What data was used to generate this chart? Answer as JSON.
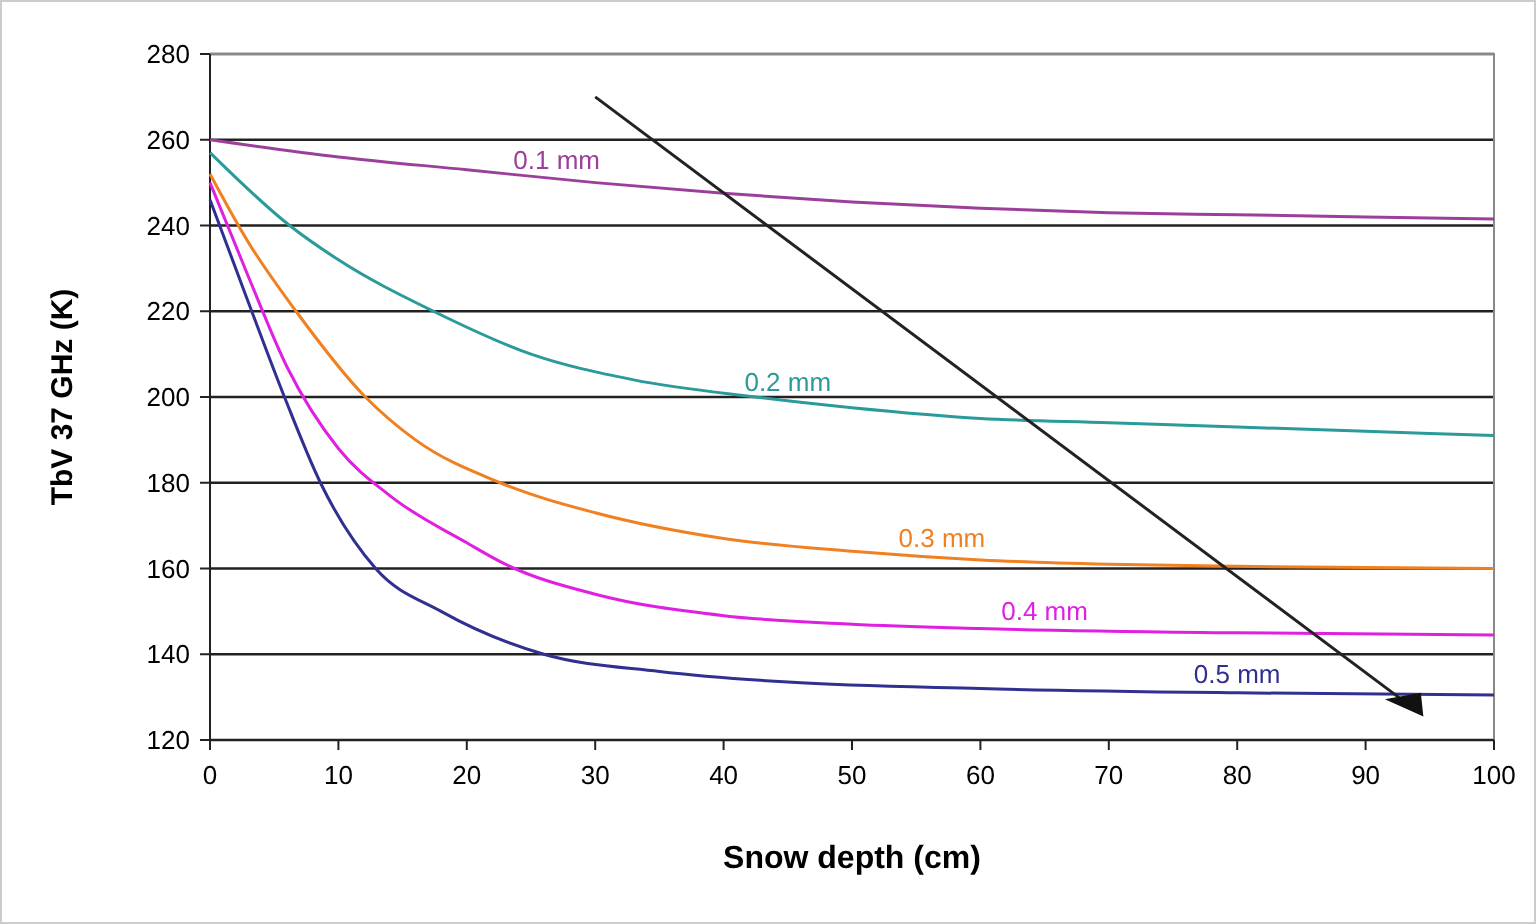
{
  "chart_data": {
    "type": "line",
    "xlabel": "Snow depth (cm)",
    "ylabel": "TbV 37 GHz (K)",
    "xlim": [
      0,
      100
    ],
    "xticks": [
      0,
      10,
      20,
      30,
      40,
      50,
      60,
      70,
      80,
      90,
      100
    ],
    "ylim": [
      120,
      280
    ],
    "yticks": [
      120,
      140,
      160,
      180,
      200,
      220,
      240,
      260,
      280
    ],
    "grid": "y",
    "marker": "none",
    "line_style": "solid",
    "series": [
      {
        "name": "0.1 mm",
        "color": "#9b3f9b",
        "x": [
          0,
          10,
          20,
          30,
          40,
          50,
          60,
          70,
          80,
          90,
          100
        ],
        "values": [
          260,
          256,
          253,
          250,
          247.5,
          245.5,
          244,
          243,
          242.5,
          242,
          241.5
        ]
      },
      {
        "name": "0.2 mm",
        "color": "#2a9a9a",
        "x": [
          0,
          6.2,
          10,
          17.4,
          25,
          33,
          42.5,
          50,
          60,
          70,
          80,
          90,
          100
        ],
        "values": [
          257,
          240,
          232,
          220,
          210,
          204,
          200,
          197.5,
          195,
          194,
          193,
          192,
          191
        ]
      },
      {
        "name": "0.3 mm",
        "color": "#f08020",
        "x": [
          0,
          3,
          6.7,
          12.1,
          16,
          22.6,
          30,
          40,
          50,
          60,
          70,
          80,
          100
        ],
        "values": [
          252,
          236,
          220,
          200,
          190,
          180,
          173,
          167,
          164,
          162,
          161,
          160.5,
          160
        ]
      },
      {
        "name": "0.4 mm",
        "color": "#e020e0",
        "x": [
          0,
          3,
          6,
          10,
          14,
          20,
          23,
          30,
          40,
          50,
          60,
          80,
          100
        ],
        "values": [
          250,
          228,
          207,
          188,
          177,
          166,
          161,
          154,
          149,
          147,
          146,
          145,
          144.5
        ]
      },
      {
        "name": "0.5 mm",
        "color": "#303090",
        "x": [
          0,
          3,
          5.8,
          8.6,
          12.9,
          18,
          26,
          35,
          45,
          60,
          80,
          100
        ],
        "values": [
          246,
          222,
          200,
          180,
          160,
          150,
          140,
          136,
          133.5,
          132,
          131,
          130.5
        ]
      }
    ]
  }
}
